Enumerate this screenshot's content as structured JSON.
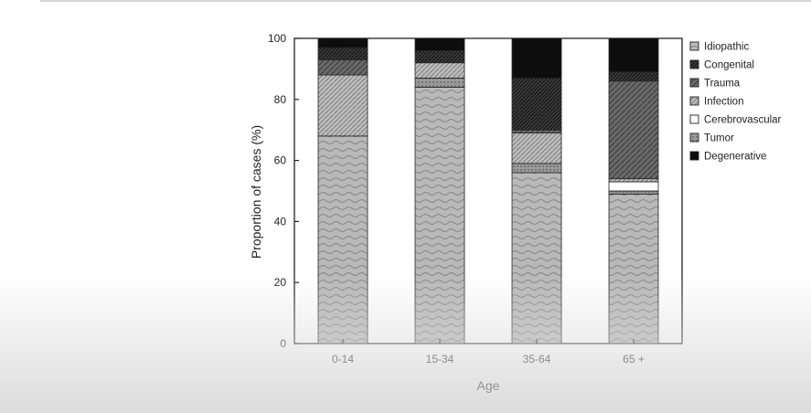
{
  "chart_data": {
    "type": "bar",
    "stacked": true,
    "xlabel": "Age",
    "ylabel": "Proportion of cases (%)",
    "ylim": [
      0,
      100
    ],
    "yticks": [
      0,
      20,
      40,
      60,
      80,
      100
    ],
    "categories": [
      "0-14",
      "15-34",
      "35-64",
      "65 +"
    ],
    "legend_position": "right",
    "series": [
      {
        "name": "Idiopathic",
        "values": [
          68,
          84,
          56,
          49
        ]
      },
      {
        "name": "Tumor",
        "values": [
          0,
          3,
          3,
          1
        ]
      },
      {
        "name": "Cerebrovascular",
        "values": [
          0,
          0,
          0,
          3
        ]
      },
      {
        "name": "Infection",
        "values": [
          20,
          5,
          10,
          1
        ]
      },
      {
        "name": "Trauma",
        "values": [
          5,
          0,
          1,
          32
        ]
      },
      {
        "name": "Congenital",
        "values": [
          4,
          4,
          17,
          3
        ]
      },
      {
        "name": "Degenerative",
        "values": [
          3,
          4,
          13,
          11
        ]
      }
    ],
    "legend": [
      "Idiopathic",
      "Congenital",
      "Trauma",
      "Infection",
      "Cerebrovascular",
      "Tumor",
      "Degenerative"
    ]
  }
}
